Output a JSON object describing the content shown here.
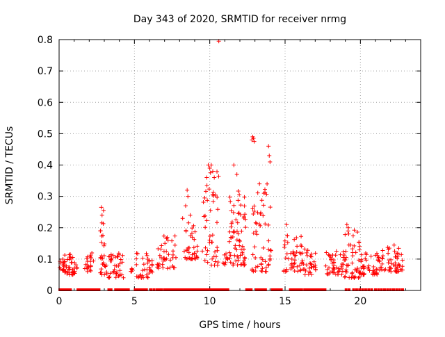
{
  "chart_data": {
    "type": "scatter",
    "title": "Day 343 of 2020, SRMTID for receiver nrmg",
    "xlabel": "GPS time / hours",
    "ylabel": "SRMTID / TECUs",
    "xlim": [
      0,
      24
    ],
    "ylim": [
      0,
      0.8
    ],
    "xticks": [
      0,
      5,
      10,
      15,
      20
    ],
    "yticks": [
      0,
      0.1,
      0.2,
      0.3,
      0.4,
      0.5,
      0.6,
      0.7,
      0.8
    ],
    "grid": true,
    "marker": "+",
    "series": [
      {
        "name": "SRMTID",
        "color": "#ff0000",
        "clusters": [
          {
            "t0": 0.0,
            "t1": 0.4,
            "n": 14,
            "lo": 0.06,
            "hi": 0.1
          },
          {
            "t0": 0.3,
            "t1": 1.2,
            "n": 40,
            "lo": 0.05,
            "hi": 0.12
          },
          {
            "t0": 1.7,
            "t1": 2.3,
            "n": 20,
            "lo": 0.06,
            "hi": 0.12
          },
          {
            "t0": 2.7,
            "t1": 3.1,
            "n": 25,
            "lo": 0.05,
            "hi": 0.22
          },
          {
            "t0": 3.1,
            "t1": 4.3,
            "n": 40,
            "lo": 0.04,
            "hi": 0.12
          },
          {
            "t0": 4.7,
            "t1": 4.9,
            "n": 6,
            "lo": 0.06,
            "hi": 0.08
          },
          {
            "t0": 5.1,
            "t1": 6.2,
            "n": 35,
            "lo": 0.04,
            "hi": 0.12
          },
          {
            "t0": 6.5,
            "t1": 7.8,
            "n": 40,
            "lo": 0.07,
            "hi": 0.18
          },
          {
            "t0": 8.3,
            "t1": 9.2,
            "n": 35,
            "lo": 0.1,
            "hi": 0.22
          },
          {
            "t0": 9.5,
            "t1": 10.6,
            "n": 45,
            "lo": 0.08,
            "hi": 0.38
          },
          {
            "t0": 10.8,
            "t1": 11.2,
            "n": 10,
            "lo": 0.08,
            "hi": 0.12
          },
          {
            "t0": 11.3,
            "t1": 12.4,
            "n": 70,
            "lo": 0.08,
            "hi": 0.33
          },
          {
            "t0": 12.8,
            "t1": 14.1,
            "n": 55,
            "lo": 0.06,
            "hi": 0.36
          },
          {
            "t0": 14.9,
            "t1": 16.1,
            "n": 45,
            "lo": 0.06,
            "hi": 0.18
          },
          {
            "t0": 16.1,
            "t1": 17.1,
            "n": 35,
            "lo": 0.05,
            "hi": 0.14
          },
          {
            "t0": 17.7,
            "t1": 18.9,
            "n": 45,
            "lo": 0.05,
            "hi": 0.13
          },
          {
            "t0": 18.9,
            "t1": 20.0,
            "n": 50,
            "lo": 0.04,
            "hi": 0.2
          },
          {
            "t0": 20.0,
            "t1": 21.3,
            "n": 50,
            "lo": 0.05,
            "hi": 0.12
          },
          {
            "t0": 21.3,
            "t1": 22.8,
            "n": 55,
            "lo": 0.06,
            "hi": 0.15
          }
        ],
        "extra_points": [
          {
            "x": 2.8,
            "y": 0.265
          },
          {
            "x": 2.85,
            "y": 0.24
          },
          {
            "x": 2.95,
            "y": 0.255
          },
          {
            "x": 8.5,
            "y": 0.32
          },
          {
            "x": 8.55,
            "y": 0.3
          },
          {
            "x": 8.4,
            "y": 0.27
          },
          {
            "x": 8.2,
            "y": 0.23
          },
          {
            "x": 8.7,
            "y": 0.24
          },
          {
            "x": 9.8,
            "y": 0.36
          },
          {
            "x": 9.9,
            "y": 0.4
          },
          {
            "x": 10.0,
            "y": 0.39
          },
          {
            "x": 10.1,
            "y": 0.4
          },
          {
            "x": 10.2,
            "y": 0.38
          },
          {
            "x": 10.3,
            "y": 0.36
          },
          {
            "x": 10.6,
            "y": 0.795
          },
          {
            "x": 11.6,
            "y": 0.4
          },
          {
            "x": 11.8,
            "y": 0.37
          },
          {
            "x": 12.8,
            "y": 0.48
          },
          {
            "x": 12.85,
            "y": 0.49
          },
          {
            "x": 12.9,
            "y": 0.485
          },
          {
            "x": 12.95,
            "y": 0.475
          },
          {
            "x": 13.9,
            "y": 0.46
          },
          {
            "x": 13.95,
            "y": 0.43
          },
          {
            "x": 14.0,
            "y": 0.41
          },
          {
            "x": 13.3,
            "y": 0.34
          },
          {
            "x": 13.6,
            "y": 0.31
          },
          {
            "x": 15.1,
            "y": 0.21
          },
          {
            "x": 19.1,
            "y": 0.21
          },
          {
            "x": 19.2,
            "y": 0.2
          }
        ],
        "zero_markers": [
          0.05,
          0.15,
          0.25,
          0.35,
          0.45,
          0.55,
          0.65,
          0.75,
          1.25,
          1.35,
          1.45,
          1.6,
          1.75,
          1.9,
          2.05,
          2.2,
          2.35,
          2.5,
          2.65,
          3.3,
          3.45,
          3.75,
          3.9,
          4.05,
          4.2,
          4.35,
          4.5,
          4.6,
          5.05,
          5.2,
          5.35,
          5.5,
          5.65,
          5.8,
          6.1,
          6.3,
          6.5,
          6.65,
          6.8,
          7.0,
          7.15,
          7.3,
          7.45,
          7.6,
          7.75,
          7.9,
          8.05,
          8.2,
          8.35,
          8.5,
          8.65,
          8.8,
          8.95,
          9.1,
          9.25,
          9.4,
          9.55,
          9.7,
          9.85,
          10.0,
          10.15,
          10.3,
          10.45,
          10.6,
          10.75,
          10.9,
          11.05,
          11.2,
          12.45,
          12.6,
          12.75,
          13.1,
          13.25,
          13.4,
          13.55,
          13.7,
          14.15,
          14.3,
          14.45,
          14.6,
          14.75,
          15.35,
          15.5,
          15.65,
          15.8,
          15.95,
          16.1,
          16.3,
          16.45,
          16.6,
          16.75,
          16.9,
          17.05,
          17.2,
          17.35,
          17.5,
          17.65,
          19.05,
          19.25,
          19.55,
          19.75,
          19.95,
          20.15,
          20.35,
          20.55,
          20.75,
          21.0,
          21.2,
          21.4,
          21.6,
          21.8,
          22.0,
          22.2,
          22.4,
          22.6,
          22.8
        ]
      }
    ]
  }
}
